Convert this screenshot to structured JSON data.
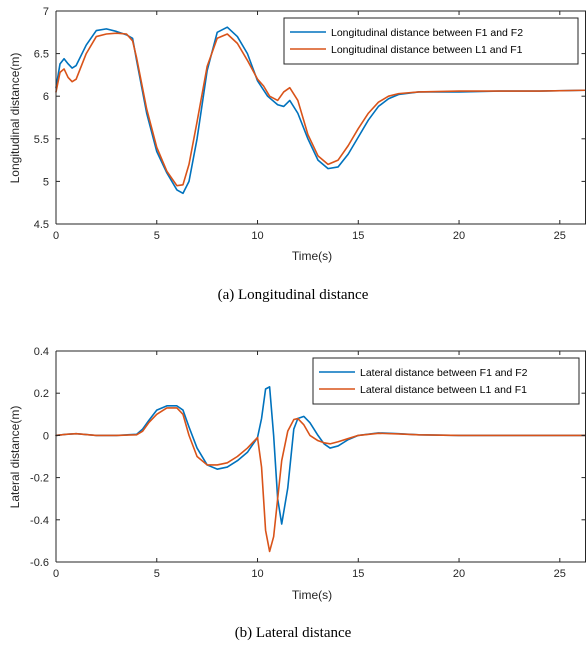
{
  "chart_data": [
    {
      "type": "line",
      "caption": "(a) Longitudinal distance",
      "xlabel": "Time(s)",
      "ylabel": "Longitudinal distance(m)",
      "xlim": [
        0,
        26.3
      ],
      "ylim": [
        4.5,
        7
      ],
      "xticks": [
        0,
        5,
        10,
        15,
        20,
        25
      ],
      "yticks": [
        4.5,
        5,
        5.5,
        6,
        6.5,
        7
      ],
      "grid": false,
      "legend_position": "top-right",
      "series": [
        {
          "name": "Longitudinal distance between F1 and F2",
          "color": "#0072BD",
          "x": [
            0,
            0.2,
            0.4,
            0.6,
            0.8,
            1.0,
            1.5,
            2.0,
            2.5,
            3.0,
            3.5,
            3.8,
            4.0,
            4.5,
            5.0,
            5.5,
            6.0,
            6.3,
            6.6,
            7.0,
            7.5,
            8.0,
            8.5,
            9.0,
            9.5,
            10.0,
            10.5,
            11.0,
            11.3,
            11.6,
            12.0,
            12.5,
            13.0,
            13.5,
            14.0,
            14.5,
            15.0,
            15.5,
            16.0,
            16.5,
            17.0,
            18.0,
            20.0,
            22.0,
            24.0,
            26.3
          ],
          "values": [
            6.1,
            6.38,
            6.44,
            6.38,
            6.33,
            6.36,
            6.6,
            6.77,
            6.79,
            6.76,
            6.72,
            6.68,
            6.42,
            5.8,
            5.35,
            5.1,
            4.9,
            4.86,
            5.0,
            5.5,
            6.3,
            6.75,
            6.81,
            6.7,
            6.5,
            6.18,
            6.0,
            5.9,
            5.88,
            5.95,
            5.8,
            5.5,
            5.25,
            5.15,
            5.17,
            5.32,
            5.52,
            5.72,
            5.88,
            5.97,
            6.02,
            6.05,
            6.05,
            6.06,
            6.06,
            6.07
          ]
        },
        {
          "name": "Longitudinal distance between L1 and F1",
          "color": "#D95319",
          "x": [
            0,
            0.2,
            0.4,
            0.6,
            0.8,
            1.0,
            1.5,
            2.0,
            2.5,
            3.0,
            3.5,
            3.8,
            4.0,
            4.5,
            5.0,
            5.5,
            6.0,
            6.3,
            6.6,
            7.0,
            7.5,
            8.0,
            8.5,
            9.0,
            9.5,
            10.0,
            10.3,
            10.6,
            11.0,
            11.3,
            11.6,
            12.0,
            12.5,
            13.0,
            13.5,
            14.0,
            14.5,
            15.0,
            15.5,
            16.0,
            16.5,
            17.0,
            18.0,
            20.0,
            22.0,
            24.0,
            26.3
          ],
          "values": [
            6.05,
            6.28,
            6.32,
            6.22,
            6.17,
            6.2,
            6.5,
            6.7,
            6.73,
            6.74,
            6.73,
            6.65,
            6.45,
            5.85,
            5.4,
            5.12,
            4.95,
            4.96,
            5.2,
            5.7,
            6.35,
            6.68,
            6.73,
            6.62,
            6.42,
            6.2,
            6.12,
            6.0,
            5.95,
            6.05,
            6.1,
            5.95,
            5.55,
            5.3,
            5.2,
            5.25,
            5.42,
            5.62,
            5.8,
            5.93,
            6.0,
            6.03,
            6.05,
            6.06,
            6.06,
            6.06,
            6.07
          ]
        }
      ]
    },
    {
      "type": "line",
      "caption": "(b) Lateral distance",
      "xlabel": "Time(s)",
      "ylabel": "Lateral distance(m)",
      "xlim": [
        0,
        26.3
      ],
      "ylim": [
        -0.6,
        0.4
      ],
      "xticks": [
        0,
        5,
        10,
        15,
        20,
        25
      ],
      "yticks": [
        -0.6,
        -0.4,
        -0.2,
        0,
        0.2,
        0.4
      ],
      "grid": false,
      "legend_position": "top-right",
      "series": [
        {
          "name": "Lateral distance between F1 and F2",
          "color": "#0072BD",
          "x": [
            0,
            0.5,
            1.0,
            1.5,
            2.0,
            3.0,
            4.0,
            4.3,
            4.6,
            5.0,
            5.5,
            6.0,
            6.3,
            6.6,
            7.0,
            7.5,
            8.0,
            8.5,
            9.0,
            9.5,
            10.0,
            10.2,
            10.4,
            10.6,
            10.8,
            11.0,
            11.2,
            11.5,
            11.8,
            12.0,
            12.3,
            12.6,
            13.0,
            13.3,
            13.6,
            14.0,
            14.5,
            15.0,
            16.0,
            17.0,
            18.0,
            20.0,
            22.0,
            24.0,
            26.3
          ],
          "values": [
            0,
            0.005,
            0.008,
            0.004,
            0,
            0,
            0.005,
            0.03,
            0.07,
            0.12,
            0.14,
            0.14,
            0.12,
            0.04,
            -0.06,
            -0.14,
            -0.16,
            -0.15,
            -0.12,
            -0.08,
            -0.01,
            0.08,
            0.22,
            0.23,
            0.0,
            -0.3,
            -0.42,
            -0.25,
            0.03,
            0.08,
            0.09,
            0.06,
            0.0,
            -0.04,
            -0.06,
            -0.05,
            -0.02,
            0.0,
            0.012,
            0.008,
            0.003,
            0.0,
            0.0,
            0.0,
            0.0
          ]
        },
        {
          "name": "Lateral distance between L1 and F1",
          "color": "#D95319",
          "x": [
            0,
            0.5,
            1.0,
            1.5,
            2.0,
            3.0,
            4.0,
            4.3,
            4.6,
            5.0,
            5.5,
            6.0,
            6.3,
            6.6,
            7.0,
            7.5,
            8.0,
            8.5,
            9.0,
            9.5,
            9.8,
            10.0,
            10.2,
            10.4,
            10.6,
            10.8,
            11.0,
            11.2,
            11.5,
            11.8,
            12.0,
            12.3,
            12.6,
            13.0,
            13.3,
            13.6,
            14.0,
            14.5,
            15.0,
            16.0,
            17.0,
            18.0,
            20.0,
            22.0,
            24.0,
            26.3
          ],
          "values": [
            0,
            0.005,
            0.008,
            0.004,
            0,
            0,
            0.003,
            0.02,
            0.06,
            0.1,
            0.13,
            0.13,
            0.1,
            0.0,
            -0.1,
            -0.14,
            -0.14,
            -0.13,
            -0.1,
            -0.06,
            -0.03,
            -0.01,
            -0.15,
            -0.45,
            -0.55,
            -0.48,
            -0.3,
            -0.12,
            0.02,
            0.075,
            0.08,
            0.05,
            0.0,
            -0.025,
            -0.035,
            -0.04,
            -0.03,
            -0.015,
            0.0,
            0.01,
            0.007,
            0.003,
            0.0,
            0.0,
            0.0,
            0.0
          ]
        }
      ]
    }
  ]
}
